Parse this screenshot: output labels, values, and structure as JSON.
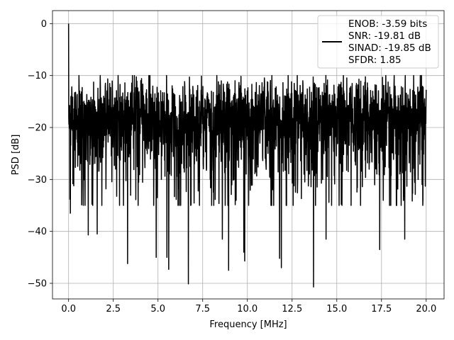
{
  "chart_data": {
    "type": "line",
    "title": "",
    "xlabel": "Frequency [MHz]",
    "ylabel": "PSD [dB]",
    "xlim": [
      -0.9,
      21.0
    ],
    "ylim": [
      -53.0,
      2.5
    ],
    "xticks": [
      0.0,
      2.5,
      5.0,
      7.5,
      10.0,
      12.5,
      15.0,
      17.5,
      20.0
    ],
    "xtick_labels": [
      "0.0",
      "2.5",
      "5.0",
      "7.5",
      "10.0",
      "12.5",
      "15.0",
      "17.5",
      "20.0"
    ],
    "yticks": [
      0,
      -10,
      -20,
      -30,
      -40,
      -50
    ],
    "ytick_labels": [
      "0",
      "−10",
      "−20",
      "−30",
      "−40",
      "−50"
    ],
    "grid": true,
    "legend_position": "top-right",
    "series": [
      {
        "name": "",
        "color": "#000000",
        "x_start": 0.0,
        "x_end": 20.0,
        "baseline_db": -20,
        "noise_upper_db": -10,
        "noise_lower_db": -32,
        "peak": {
          "x": 0.0,
          "y": 0.0
        },
        "deep_nulls": [
          {
            "x": 0.1,
            "y": -36.5
          },
          {
            "x": 1.1,
            "y": -40.7
          },
          {
            "x": 1.6,
            "y": -40.5
          },
          {
            "x": 3.3,
            "y": -46.2
          },
          {
            "x": 4.9,
            "y": -45.0
          },
          {
            "x": 5.5,
            "y": -45.0
          },
          {
            "x": 5.6,
            "y": -47.3
          },
          {
            "x": 6.7,
            "y": -50.1
          },
          {
            "x": 8.6,
            "y": -41.5
          },
          {
            "x": 8.95,
            "y": -47.5
          },
          {
            "x": 9.8,
            "y": -44.0
          },
          {
            "x": 9.85,
            "y": -45.7
          },
          {
            "x": 11.8,
            "y": -45.2
          },
          {
            "x": 11.9,
            "y": -47.0
          },
          {
            "x": 13.7,
            "y": -50.7
          },
          {
            "x": 14.4,
            "y": -41.5
          },
          {
            "x": 17.4,
            "y": -43.5
          },
          {
            "x": 18.8,
            "y": -41.5
          }
        ]
      }
    ],
    "legend": {
      "lines": [
        "ENOB: -3.59 bits",
        "SNR: -19.81 dB",
        "SINAD: -19.85 dB",
        "SFDR: 1.85"
      ]
    }
  },
  "colors": {
    "line": "#000000",
    "grid": "#b0b0b0",
    "axes": "#000000",
    "background": "#ffffff"
  }
}
